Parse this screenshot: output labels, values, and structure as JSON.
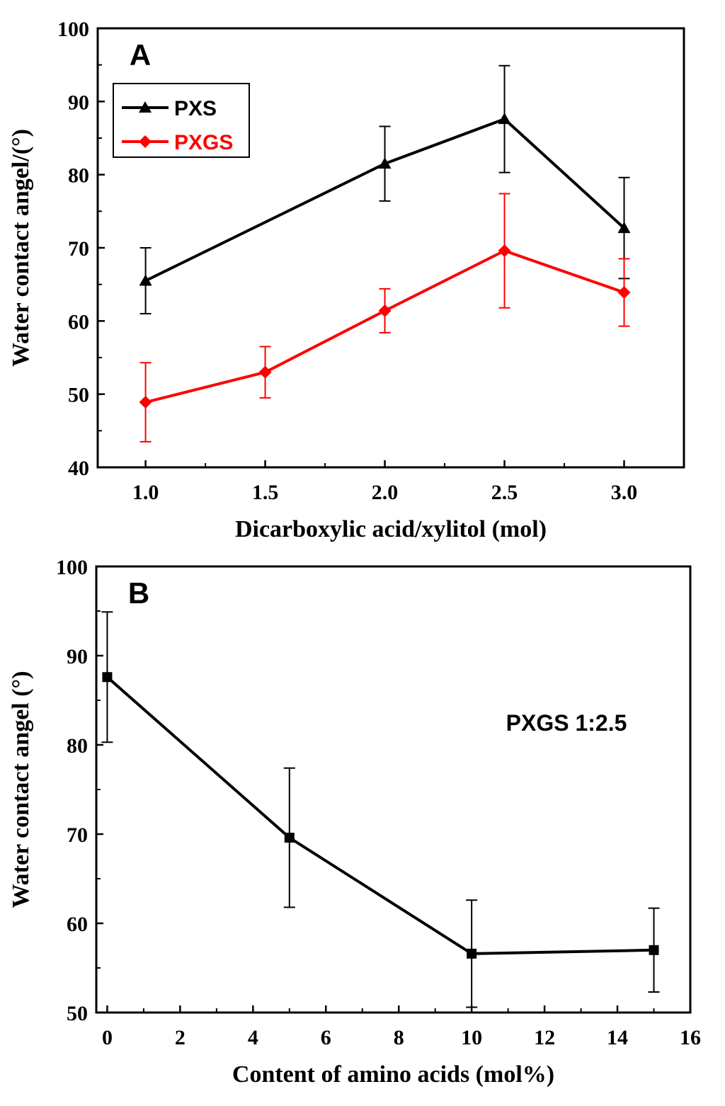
{
  "chart_data": [
    {
      "type": "line",
      "panel_label": "A",
      "title": "",
      "xlabel": "Dicarboxylic acid/xylitol (mol)",
      "ylabel": "Water contact angel/(°)",
      "xlim": [
        0.8,
        3.25
      ],
      "ylim": [
        40,
        100
      ],
      "xticks": [
        "1.0",
        "1.5",
        "2.0",
        "2.5",
        "3.0"
      ],
      "xtick_values": [
        1.0,
        1.5,
        2.0,
        2.5,
        3.0
      ],
      "yticks": [
        "40",
        "50",
        "60",
        "70",
        "80",
        "90",
        "100"
      ],
      "ytick_values": [
        40,
        50,
        60,
        70,
        80,
        90,
        100
      ],
      "legend_position": "upper-left",
      "series": [
        {
          "name": "PXS",
          "color": "#000000",
          "marker": "triangle",
          "x": [
            1.0,
            2.0,
            2.5,
            3.0
          ],
          "values": [
            65.5,
            81.5,
            87.6,
            72.7
          ],
          "error": [
            4.5,
            5.1,
            7.3,
            6.9
          ]
        },
        {
          "name": "PXGS",
          "color": "#ff0000",
          "marker": "diamond",
          "x": [
            1.0,
            1.5,
            2.0,
            2.5,
            3.0
          ],
          "values": [
            48.9,
            53.0,
            61.4,
            69.6,
            63.9
          ],
          "error": [
            5.4,
            3.5,
            3.0,
            7.8,
            4.6
          ]
        }
      ]
    },
    {
      "type": "line",
      "panel_label": "B",
      "title": "",
      "annotation": "PXGS 1:2.5",
      "xlabel": "Content of amino acids (mol%)",
      "ylabel": "Water contact angel (°)",
      "xlim": [
        -0.3,
        16
      ],
      "ylim": [
        50,
        100
      ],
      "xticks": [
        "0",
        "2",
        "4",
        "6",
        "8",
        "10",
        "12",
        "14",
        "16"
      ],
      "xtick_values": [
        0,
        2,
        4,
        6,
        8,
        10,
        12,
        14,
        16
      ],
      "yticks": [
        "50",
        "60",
        "70",
        "80",
        "90",
        "100"
      ],
      "ytick_values": [
        50,
        60,
        70,
        80,
        90,
        100
      ],
      "series": [
        {
          "name": "PXGS 1:2.5",
          "color": "#000000",
          "marker": "square",
          "x": [
            0,
            5,
            10,
            15
          ],
          "values": [
            87.6,
            69.6,
            56.6,
            57.0
          ],
          "error": [
            7.3,
            7.8,
            6.0,
            4.7
          ]
        }
      ]
    }
  ]
}
